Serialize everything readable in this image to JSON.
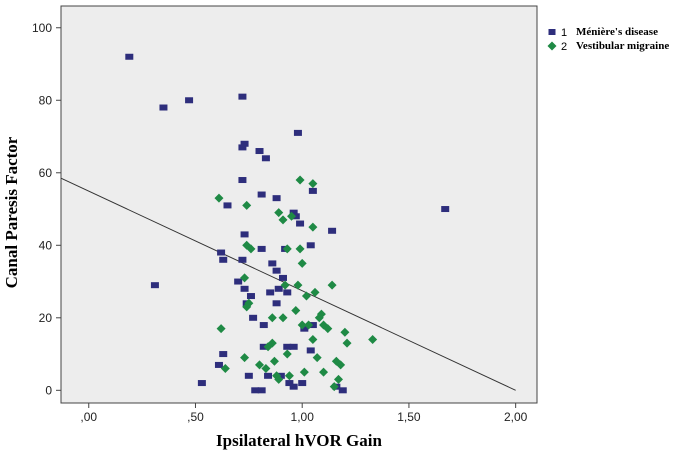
{
  "chart_data": {
    "type": "scatter",
    "xlabel": "Ipsilateral hVOR Gain",
    "ylabel": "Canal Paresis Factor",
    "xlim": [
      -0.13,
      2.1
    ],
    "ylim": [
      -3.5,
      106
    ],
    "x_ticks": [
      0,
      0.5,
      1.0,
      1.5,
      2.0
    ],
    "x_tick_labels": [
      ",00",
      ",50",
      "1,00",
      "1,50",
      "2,00"
    ],
    "y_ticks": [
      0,
      20,
      40,
      60,
      80,
      100
    ],
    "y_tick_labels": [
      "0",
      "20",
      "40",
      "60",
      "80",
      "100"
    ],
    "grid": false,
    "legend_position": "top-right, outside plot",
    "plot_background": "#ededed",
    "series": [
      {
        "name": "Ménière's disease",
        "legend_number": "1",
        "marker": "square",
        "color": "#2e2e7c",
        "points": [
          [
            0.19,
            92
          ],
          [
            0.35,
            78
          ],
          [
            0.47,
            80
          ],
          [
            0.72,
            81
          ],
          [
            0.73,
            68
          ],
          [
            0.72,
            67
          ],
          [
            0.8,
            66
          ],
          [
            0.83,
            64
          ],
          [
            0.98,
            71
          ],
          [
            0.72,
            58
          ],
          [
            0.65,
            51
          ],
          [
            0.81,
            54
          ],
          [
            0.88,
            53
          ],
          [
            0.96,
            49
          ],
          [
            0.97,
            48
          ],
          [
            1.05,
            55
          ],
          [
            1.14,
            44
          ],
          [
            1.04,
            40
          ],
          [
            0.99,
            46
          ],
          [
            0.73,
            43
          ],
          [
            0.92,
            39
          ],
          [
            0.62,
            38
          ],
          [
            0.63,
            36
          ],
          [
            0.72,
            36
          ],
          [
            0.81,
            39
          ],
          [
            0.86,
            35
          ],
          [
            0.88,
            33
          ],
          [
            0.91,
            31
          ],
          [
            0.7,
            30
          ],
          [
            0.31,
            29
          ],
          [
            0.73,
            28
          ],
          [
            0.76,
            26
          ],
          [
            0.85,
            27
          ],
          [
            0.89,
            28
          ],
          [
            0.74,
            24
          ],
          [
            0.88,
            24
          ],
          [
            0.77,
            20
          ],
          [
            0.82,
            18
          ],
          [
            0.93,
            27
          ],
          [
            0.63,
            10
          ],
          [
            0.61,
            7
          ],
          [
            0.53,
            2
          ],
          [
            0.82,
            12
          ],
          [
            0.93,
            12
          ],
          [
            0.96,
            12
          ],
          [
            1.04,
            11
          ],
          [
            0.75,
            4
          ],
          [
            0.84,
            4
          ],
          [
            0.9,
            4
          ],
          [
            0.94,
            2
          ],
          [
            0.96,
            1
          ],
          [
            0.78,
            0
          ],
          [
            0.81,
            0
          ],
          [
            1.0,
            2
          ],
          [
            1.16,
            1
          ],
          [
            1.19,
            0
          ],
          [
            1.67,
            50
          ],
          [
            1.05,
            18
          ],
          [
            1.01,
            17
          ]
        ]
      },
      {
        "name": "Vestibular migraine",
        "legend_number": "2",
        "marker": "diamond",
        "color": "#1f8a45",
        "points": [
          [
            0.61,
            53
          ],
          [
            0.74,
            51
          ],
          [
            0.99,
            58
          ],
          [
            1.05,
            57
          ],
          [
            0.89,
            49
          ],
          [
            0.91,
            47
          ],
          [
            0.95,
            48
          ],
          [
            0.99,
            39
          ],
          [
            1.05,
            45
          ],
          [
            1.14,
            29
          ],
          [
            0.74,
            40
          ],
          [
            0.76,
            39
          ],
          [
            0.93,
            39
          ],
          [
            1.0,
            35
          ],
          [
            0.92,
            29
          ],
          [
            0.98,
            29
          ],
          [
            1.02,
            26
          ],
          [
            1.06,
            27
          ],
          [
            0.73,
            31
          ],
          [
            0.74,
            23
          ],
          [
            0.75,
            24
          ],
          [
            0.86,
            20
          ],
          [
            0.91,
            20
          ],
          [
            0.97,
            22
          ],
          [
            1.09,
            21
          ],
          [
            1.1,
            18
          ],
          [
            1.0,
            18
          ],
          [
            1.03,
            18
          ],
          [
            1.08,
            20
          ],
          [
            1.12,
            17
          ],
          [
            1.2,
            16
          ],
          [
            1.33,
            14
          ],
          [
            1.21,
            13
          ],
          [
            0.62,
            17
          ],
          [
            0.73,
            9
          ],
          [
            0.84,
            12
          ],
          [
            0.86,
            13
          ],
          [
            0.87,
            8
          ],
          [
            0.8,
            7
          ],
          [
            0.64,
            6
          ],
          [
            0.83,
            6
          ],
          [
            0.88,
            4
          ],
          [
            0.89,
            3
          ],
          [
            0.94,
            4
          ],
          [
            0.93,
            10
          ],
          [
            1.01,
            5
          ],
          [
            1.07,
            9
          ],
          [
            1.1,
            5
          ],
          [
            1.16,
            8
          ],
          [
            1.18,
            7
          ],
          [
            1.15,
            1
          ],
          [
            1.17,
            3
          ],
          [
            1.05,
            14
          ]
        ]
      }
    ],
    "fit_line": {
      "from": [
        -0.13,
        58.5
      ],
      "to": [
        2.0,
        0
      ]
    }
  }
}
